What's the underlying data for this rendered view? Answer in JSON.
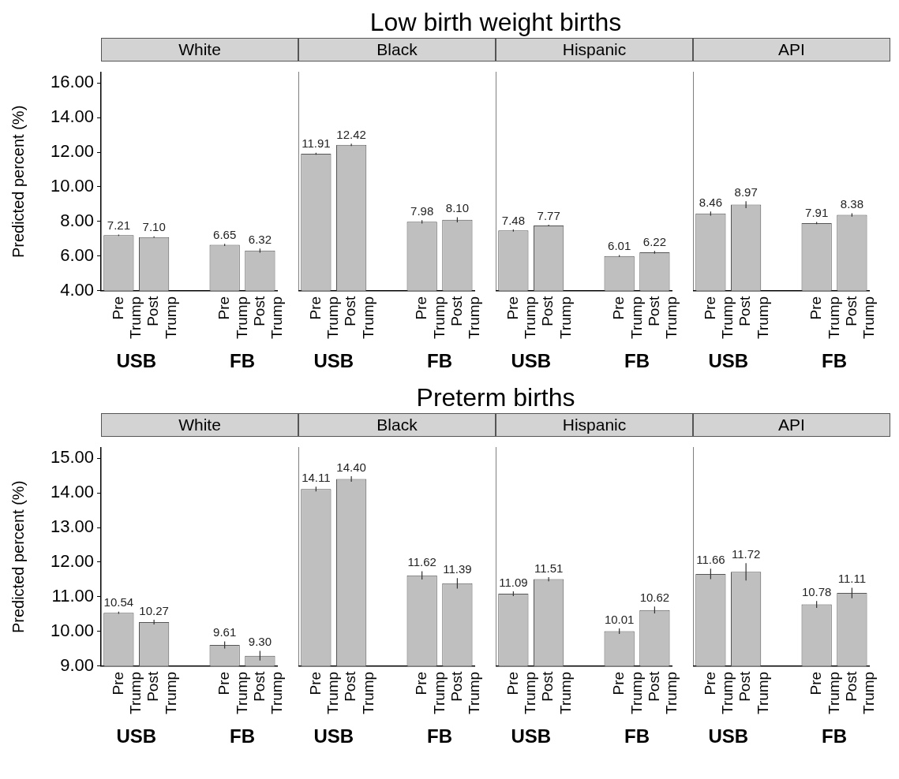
{
  "chart_data": [
    {
      "type": "other",
      "title": "Low birth weight births"
    },
    {
      "type": "bar",
      "subtitle": "White",
      "ylabel": "Predicted percent (%)",
      "categories": [
        "Pre Trump",
        "Post Trump",
        null,
        "Pre Trump",
        "Post Trump"
      ],
      "values": [
        7.21,
        7.1,
        null,
        6.65,
        6.32
      ],
      "value_labels": [
        "7.21",
        "7.10",
        null,
        "6.65",
        "6.32"
      ],
      "errors": [
        0.04,
        0.04,
        null,
        0.06,
        0.12
      ],
      "color": "#bfbfbf",
      "ylim": [
        4,
        16.6
      ],
      "yticks": [
        {
          "value": 4,
          "label": "4.00"
        },
        {
          "value": 6,
          "label": "6.00"
        },
        {
          "value": 8,
          "label": "8.00"
        },
        {
          "value": 10,
          "label": "10.00"
        },
        {
          "value": 12,
          "label": "12.00"
        },
        {
          "value": 14,
          "label": "14.00"
        },
        {
          "value": 16,
          "label": "16.00"
        }
      ],
      "annotations": [
        "USB",
        "FB"
      ]
    },
    {
      "type": "bar",
      "subtitle": "Black",
      "categories": [
        "Pre Trump",
        "Post Trump",
        null,
        "Pre Trump",
        "Post Trump"
      ],
      "values": [
        11.91,
        12.42,
        null,
        7.98,
        8.1
      ],
      "value_labels": [
        "11.91",
        "12.42",
        null,
        "7.98",
        "8.10"
      ],
      "errors": [
        0.06,
        0.07,
        null,
        0.1,
        0.15
      ],
      "color": "#bfbfbf",
      "ylim": [
        4,
        16.6
      ],
      "tick_labels": "x",
      "annotations": [
        "USB",
        "FB"
      ]
    },
    {
      "type": "bar",
      "subtitle": "Hispanic",
      "categories": [
        "Pre Trump",
        "Post Trump",
        null,
        "Pre Trump",
        "Post Trump"
      ],
      "values": [
        7.48,
        7.77,
        null,
        6.01,
        6.22
      ],
      "value_labels": [
        "7.48",
        "7.77",
        null,
        "6.01",
        "6.22"
      ],
      "errors": [
        0.06,
        0.05,
        null,
        0.05,
        0.08
      ],
      "color": "#bfbfbf",
      "ylim": [
        4,
        16.6
      ],
      "tick_labels": "x",
      "annotations": [
        "USB",
        "FB"
      ]
    },
    {
      "type": "bar",
      "subtitle": "API",
      "categories": [
        "Pre Trump",
        "Post Trump",
        null,
        "Pre Trump",
        "Post Trump"
      ],
      "values": [
        8.46,
        8.97,
        null,
        7.91,
        8.38
      ],
      "value_labels": [
        "8.46",
        "8.97",
        null,
        "7.91",
        "8.38"
      ],
      "errors": [
        0.12,
        0.2,
        null,
        0.06,
        0.1
      ],
      "color": "#bfbfbf",
      "ylim": [
        4,
        16.6
      ],
      "tick_labels": "x",
      "annotations": [
        "USB",
        "FB"
      ]
    },
    {
      "type": "other",
      "title": "Preterm births"
    },
    {
      "type": "bar",
      "subtitle": "White",
      "ylabel": "Predicted percent (%)",
      "categories": [
        "Pre Trump",
        "Post Trump",
        null,
        "Pre Trump",
        "Post Trump"
      ],
      "values": [
        10.54,
        10.27,
        null,
        9.61,
        9.3
      ],
      "value_labels": [
        "10.54",
        "10.27",
        null,
        "9.61",
        "9.30"
      ],
      "errors": [
        0.03,
        0.07,
        null,
        0.1,
        0.14
      ],
      "color": "#bfbfbf",
      "ylim": [
        9,
        15.3
      ],
      "yticks": [
        {
          "value": 9,
          "label": "9.00"
        },
        {
          "value": 10,
          "label": "10.00"
        },
        {
          "value": 11,
          "label": "11.00"
        },
        {
          "value": 12,
          "label": "12.00"
        },
        {
          "value": 13,
          "label": "13.00"
        },
        {
          "value": 14,
          "label": "14.00"
        },
        {
          "value": 15,
          "label": "15.00"
        }
      ],
      "annotations": [
        "USB",
        "FB"
      ]
    },
    {
      "type": "bar",
      "subtitle": "Black",
      "categories": [
        "Pre Trump",
        "Post Trump",
        null,
        "Pre Trump",
        "Post Trump"
      ],
      "values": [
        14.11,
        14.4,
        null,
        11.62,
        11.39
      ],
      "value_labels": [
        "14.11",
        "14.40",
        null,
        "11.62",
        "11.39"
      ],
      "errors": [
        0.07,
        0.08,
        null,
        0.12,
        0.15
      ],
      "color": "#bfbfbf",
      "ylim": [
        9,
        15.3
      ],
      "tick_labels": "x",
      "annotations": [
        "USB",
        "FB"
      ]
    },
    {
      "type": "bar",
      "subtitle": "Hispanic",
      "categories": [
        "Pre Trump",
        "Post Trump",
        null,
        "Pre Trump",
        "Post Trump"
      ],
      "values": [
        11.09,
        11.51,
        null,
        10.01,
        10.62
      ],
      "value_labels": [
        "11.09",
        "11.51",
        null,
        "10.01",
        "10.62"
      ],
      "errors": [
        0.07,
        0.06,
        null,
        0.08,
        0.1
      ],
      "color": "#bfbfbf",
      "ylim": [
        9,
        15.3
      ],
      "tick_labels": "x",
      "annotations": [
        "USB",
        "FB"
      ]
    },
    {
      "type": "bar",
      "subtitle": "API",
      "categories": [
        "Pre Trump",
        "Post Trump",
        null,
        "Pre Trump",
        "Post Trump"
      ],
      "values": [
        11.66,
        11.72,
        null,
        10.78,
        11.11
      ],
      "value_labels": [
        "11.66",
        "11.72",
        null,
        "10.78",
        "11.11"
      ],
      "errors": [
        0.15,
        0.25,
        null,
        0.1,
        0.15
      ],
      "color": "#bfbfbf",
      "ylim": [
        9,
        15.3
      ],
      "tick_labels": "x",
      "annotations": [
        "USB",
        "FB"
      ]
    }
  ]
}
